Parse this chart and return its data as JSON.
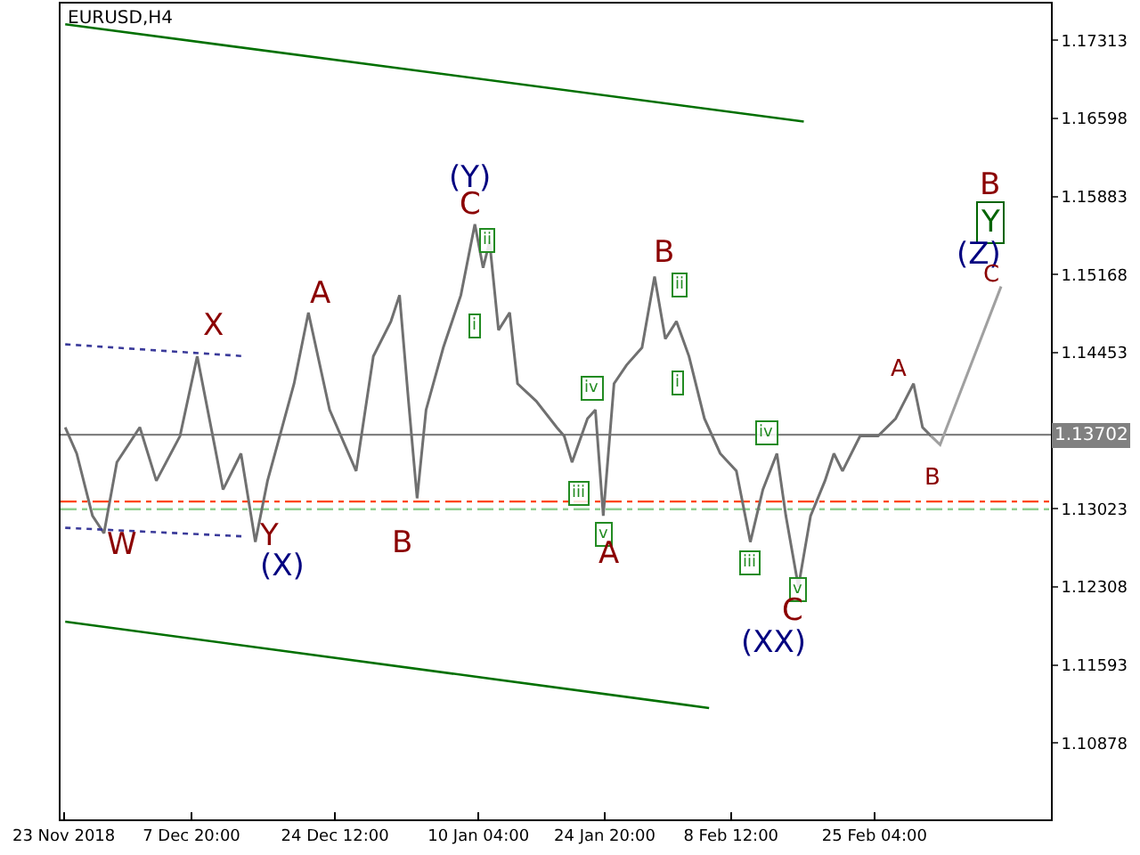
{
  "chart_data": {
    "type": "line",
    "title": "EURUSD,H4",
    "xlim": [
      "2018-11-22T15:00",
      "2019-03-17T16:00"
    ],
    "xticks": [
      {
        "value": "2018-11-23",
        "label": "23 Nov 2018"
      },
      {
        "value": "2018-12-07T20:00",
        "label": "7 Dec 20:00"
      },
      {
        "value": "2018-12-24T12:00",
        "label": "24 Dec 12:00"
      },
      {
        "value": "2019-01-10T04:00",
        "label": "10 Jan 04:00"
      },
      {
        "value": "2019-01-24T20:00",
        "label": "24 Jan 20:00"
      },
      {
        "value": "2019-02-08T12:00",
        "label": "8 Feb 12:00"
      },
      {
        "value": "2019-02-25T04:00",
        "label": "25 Feb 04:00"
      }
    ],
    "ylim": [
      1.1018,
      1.1765
    ],
    "yticks": [
      1.10878,
      1.11593,
      1.12308,
      1.13023,
      1.14453,
      1.15168,
      1.15883,
      1.16598,
      1.17313
    ],
    "grid": false,
    "marker": "none",
    "line_style": "solid",
    "series": [
      {
        "color": "#707070",
        "x": [
          "2018-11-23T04:00",
          "2018-11-24T12:00",
          "2018-11-26T08:00",
          "2018-11-27T16:00",
          "2018-11-29T04:00",
          "2018-12-01T20:00",
          "2018-12-03T18:00",
          "2018-12-06T12:00",
          "2018-12-08T12:00",
          "2018-12-10T12:00",
          "2018-12-11T12:00",
          "2018-12-13T14:00",
          "2018-12-15T06:00",
          "2018-12-16T16:00",
          "2018-12-19T18:00",
          "2018-12-21T10:00",
          "2018-12-23T21:00",
          "2018-12-26T23:00",
          "2018-12-28T23:00",
          "2018-12-31T00:00",
          "2019-01-01T00:00",
          "2019-01-02T01:00",
          "2019-01-03T01:00",
          "2019-01-04T02:00",
          "2019-01-06T02:00",
          "2019-01-08T03:00",
          "2019-01-09T18:00",
          "2019-01-10T17:00",
          "2019-01-11T11:00",
          "2019-01-12T12:00",
          "2019-01-13T19:00",
          "2019-01-14T17:00",
          "2019-01-16T21:00",
          "2019-01-19T06:00",
          "2019-01-20T03:00",
          "2019-01-21T01:00",
          "2019-01-22T20:00",
          "2019-01-23T18:00",
          "2019-01-24T16:00",
          "2019-01-25T22:00",
          "2019-01-27T09:00",
          "2019-01-29T04:00",
          "2019-01-30T15:00",
          "2019-01-31T21:00",
          "2019-02-02T04:00",
          "2019-02-03T15:00",
          "2019-02-05T10:00",
          "2019-02-07T06:00",
          "2019-02-09T03:00",
          "2019-02-10T18:00",
          "2019-02-12T05:00",
          "2019-02-13T20:00",
          "2019-02-14T21:00",
          "2019-02-16T08:00",
          "2019-02-17T18:00",
          "2019-02-19T10:00",
          "2019-02-20T11:00",
          "2019-02-21T11:00",
          "2019-02-23T12:00",
          "2019-02-25T14:00",
          "2019-02-27T15:00",
          "2019-02-28T16:00",
          "2019-03-01T17:00",
          "2019-03-02T18:00",
          "2019-03-03T18:00"
        ],
        "values": [
          1.1377,
          1.1353,
          1.1296,
          1.128,
          1.1345,
          1.1377,
          1.1328,
          1.1369,
          1.1442,
          1.1361,
          1.132,
          1.1353,
          1.1272,
          1.1328,
          1.1417,
          1.1482,
          1.1393,
          1.1337,
          1.1442,
          1.1474,
          1.1498,
          1.1401,
          1.1312,
          1.1393,
          1.145,
          1.1498,
          1.1563,
          1.1523,
          1.1547,
          1.1466,
          1.1482,
          1.1417,
          1.1401,
          1.1377,
          1.1369,
          1.1345,
          1.1385,
          1.1393,
          1.1296,
          1.1417,
          1.1434,
          1.145,
          1.1515,
          1.1458,
          1.1474,
          1.1442,
          1.1385,
          1.1353,
          1.1337,
          1.1272,
          1.132,
          1.1353,
          1.1296,
          1.1231,
          1.1296,
          1.1328,
          1.1353,
          1.1337,
          1.1369,
          1.1369,
          1.1385,
          1.1401,
          1.1417,
          1.1377,
          1.1369
        ]
      },
      {
        "color": "#a0a0a0",
        "x": [
          "2019-03-03T18:00",
          "2019-03-04T19:00",
          "2019-03-11T21:00"
        ],
        "values": [
          1.1369,
          1.1361,
          1.1506
        ]
      },
      {
        "color": "#007000",
        "x": [
          "2018-11-23T04:00",
          "2019-02-16T23:00"
        ],
        "values": [
          1.1746,
          1.1657
        ]
      },
      {
        "color": "#007000",
        "x": [
          "2018-11-23T04:00",
          "2019-02-05T23:00"
        ],
        "values": [
          1.1199,
          1.112
        ]
      },
      {
        "color": "#3a3a9a",
        "line_style": "dotted",
        "x": [
          "2018-11-23T04:00",
          "2018-12-14T05:00"
        ],
        "values": [
          1.1453,
          1.1442
        ]
      },
      {
        "color": "#3a3a9a",
        "line_style": "dotted",
        "x": [
          "2018-11-23T04:00",
          "2018-12-14T05:00"
        ],
        "values": [
          1.1285,
          1.1277
        ]
      }
    ],
    "ref_lines": [
      {
        "axis": "y",
        "value": 1.13702,
        "label": "1.13702",
        "color": "#808080",
        "line_style": "solid"
      },
      {
        "axis": "y",
        "value": 1.1309,
        "color": "#ff4500",
        "line_style": "dashdot"
      },
      {
        "axis": "y",
        "value": 1.1302,
        "color": "#8fcf8f",
        "line_style": "dashdot"
      }
    ],
    "annotations": [
      "W",
      "X",
      "Y",
      "(X)",
      "A",
      "B",
      "(Y)",
      "C",
      "ii",
      "i",
      "iv",
      "iii",
      "v",
      "A",
      "B",
      "ii",
      "i",
      "iv",
      "iii",
      "v",
      "C",
      "(XX)",
      "A",
      "B",
      "B",
      "Y",
      "(Z)",
      "C"
    ]
  }
}
